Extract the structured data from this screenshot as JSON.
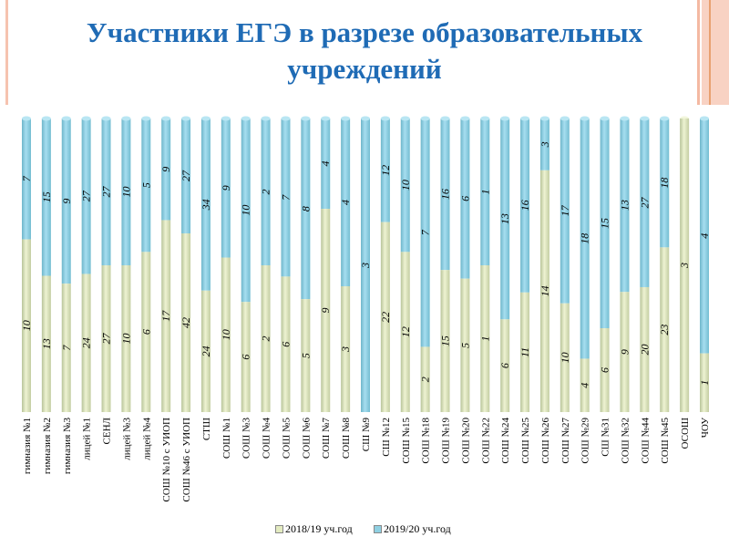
{
  "title": "Участники ЕГЭ в разрезе образовательных учреждений",
  "colors": {
    "title": "#1f6bb5",
    "series_2018": "#e3ebc0",
    "series_2019": "#8fd0e2",
    "decoration": "#f4b9a2"
  },
  "chart_data": {
    "type": "bar",
    "stacked": "100%",
    "orientation": "vertical",
    "title": "Участники ЕГЭ в разрезе образовательных учреждений",
    "xlabel": "",
    "ylabel": "",
    "grid": false,
    "legend_position": "bottom",
    "categories": [
      "гимназия №1",
      "гимназия №2",
      "гимназия №3",
      "лицей №1",
      "СЕНЛ",
      "лицей №3",
      "лицей №4",
      "СОШ №10 с УИОП",
      "СОШ №46 с УИОП",
      "СТШ",
      "СОШ №1",
      "СОШ №3",
      "СОШ №4",
      "СОШ №5",
      "СОШ №6",
      "СОШ №7",
      "СОШ №8",
      "СШ №9",
      "СШ №12",
      "СОШ №15",
      "СОШ №18",
      "СОШ №19",
      "СОШ №20",
      "СОШ №22",
      "СОШ №24",
      "СОШ №25",
      "СОШ №26",
      "СОШ №27",
      "СОШ №29",
      "СШ №31",
      "СОШ №32",
      "СОШ №44",
      "СОШ №45",
      "ОСОШ",
      "ЧОУ"
    ],
    "series": [
      {
        "name": "2018/19 уч.год",
        "values": [
          10,
          13,
          7,
          24,
          27,
          10,
          6,
          17,
          42,
          24,
          10,
          6,
          2,
          6,
          5,
          9,
          3,
          0,
          22,
          12,
          2,
          15,
          5,
          1,
          6,
          11,
          14,
          10,
          4,
          6,
          9,
          20,
          23,
          3,
          1
        ]
      },
      {
        "name": "2019/20 уч.год",
        "values": [
          7,
          15,
          9,
          27,
          27,
          10,
          5,
          9,
          27,
          34,
          9,
          10,
          2,
          7,
          8,
          4,
          4,
          3,
          12,
          10,
          7,
          16,
          6,
          1,
          13,
          16,
          3,
          17,
          18,
          15,
          13,
          27,
          18,
          0,
          4
        ]
      }
    ]
  }
}
